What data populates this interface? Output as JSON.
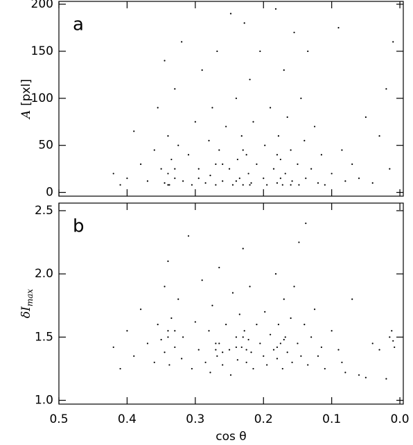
{
  "chart_data": [
    {
      "type": "scatter",
      "annotation": "a",
      "ylabel": "A",
      "ylabel_unit": "[pxl]",
      "color": "#000000",
      "xlim": [
        0.5,
        -0.005
      ],
      "ylim": [
        -4,
        203
      ],
      "yticks": [
        0,
        50,
        100,
        150,
        200
      ],
      "x": [
        0.42,
        0.41,
        0.4,
        0.39,
        0.38,
        0.37,
        0.36,
        0.355,
        0.35,
        0.345,
        0.345,
        0.34,
        0.34,
        0.338,
        0.335,
        0.33,
        0.33,
        0.325,
        0.32,
        0.318,
        0.31,
        0.305,
        0.3,
        0.295,
        0.29,
        0.285,
        0.28,
        0.278,
        0.275,
        0.27,
        0.27,
        0.268,
        0.265,
        0.26,
        0.255,
        0.25,
        0.248,
        0.245,
        0.24,
        0.238,
        0.235,
        0.232,
        0.23,
        0.228,
        0.225,
        0.222,
        0.22,
        0.218,
        0.215,
        0.21,
        0.205,
        0.2,
        0.198,
        0.195,
        0.19,
        0.185,
        0.182,
        0.18,
        0.178,
        0.175,
        0.172,
        0.17,
        0.168,
        0.165,
        0.16,
        0.158,
        0.155,
        0.15,
        0.148,
        0.145,
        0.14,
        0.138,
        0.135,
        0.13,
        0.125,
        0.12,
        0.115,
        0.11,
        0.1,
        0.09,
        0.085,
        0.08,
        0.07,
        0.06,
        0.05,
        0.04,
        0.03,
        0.02,
        0.015,
        0.01,
        0.295,
        0.26,
        0.24,
        0.23,
        0.22,
        0.33,
        0.34,
        0.175,
        0.18,
        0.16
      ],
      "values": [
        20,
        8,
        15,
        65,
        30,
        12,
        45,
        90,
        25,
        10,
        140,
        60,
        20,
        8,
        35,
        110,
        15,
        50,
        160,
        12,
        40,
        8,
        75,
        25,
        130,
        10,
        55,
        18,
        90,
        30,
        8,
        150,
        45,
        12,
        70,
        25,
        190,
        8,
        100,
        35,
        15,
        60,
        8,
        180,
        40,
        20,
        120,
        10,
        75,
        30,
        150,
        15,
        50,
        8,
        90,
        25,
        195,
        10,
        60,
        35,
        8,
        130,
        20,
        80,
        45,
        12,
        170,
        30,
        8,
        100,
        55,
        15,
        150,
        25,
        70,
        10,
        40,
        8,
        20,
        175,
        45,
        12,
        30,
        15,
        80,
        10,
        60,
        110,
        25,
        160,
        15,
        30,
        12,
        45,
        8,
        25,
        8,
        15,
        40,
        8
      ]
    },
    {
      "type": "scatter",
      "annotation": "b",
      "ylabel": "δI",
      "ylabel_sub": "max",
      "xlabel": "cos θ",
      "color": "#000000",
      "xlim": [
        0.5,
        -0.005
      ],
      "ylim": [
        0.97,
        2.56
      ],
      "yticks": [
        {
          "value": 1,
          "label": "1.0"
        },
        1.5,
        {
          "value": 2,
          "label": "2.0"
        },
        2.5
      ],
      "xticks": [
        0.5,
        0.4,
        0.3,
        0.2,
        0.1,
        {
          "value": 0,
          "label": "0.0"
        }
      ],
      "x": [
        0.42,
        0.41,
        0.4,
        0.39,
        0.38,
        0.37,
        0.36,
        0.355,
        0.35,
        0.345,
        0.345,
        0.34,
        0.34,
        0.338,
        0.335,
        0.33,
        0.325,
        0.32,
        0.318,
        0.31,
        0.305,
        0.3,
        0.295,
        0.29,
        0.285,
        0.28,
        0.278,
        0.275,
        0.27,
        0.268,
        0.265,
        0.26,
        0.255,
        0.25,
        0.248,
        0.245,
        0.24,
        0.238,
        0.235,
        0.232,
        0.23,
        0.228,
        0.225,
        0.222,
        0.22,
        0.218,
        0.215,
        0.21,
        0.205,
        0.2,
        0.198,
        0.195,
        0.19,
        0.185,
        0.182,
        0.18,
        0.178,
        0.175,
        0.172,
        0.17,
        0.168,
        0.165,
        0.16,
        0.158,
        0.155,
        0.15,
        0.148,
        0.145,
        0.14,
        0.138,
        0.135,
        0.13,
        0.125,
        0.12,
        0.115,
        0.11,
        0.1,
        0.09,
        0.085,
        0.08,
        0.07,
        0.06,
        0.05,
        0.04,
        0.03,
        0.02,
        0.015,
        0.01,
        0.012,
        0.008,
        0.265,
        0.24,
        0.23,
        0.225,
        0.26,
        0.17,
        0.18,
        0.34,
        0.33,
        0.27
      ],
      "values": [
        1.42,
        1.25,
        1.55,
        1.35,
        1.72,
        1.45,
        1.3,
        1.6,
        1.48,
        1.9,
        1.38,
        2.1,
        1.55,
        1.28,
        1.65,
        1.42,
        1.8,
        1.33,
        1.5,
        2.3,
        1.25,
        1.62,
        1.4,
        1.95,
        1.3,
        1.55,
        1.22,
        1.75,
        1.45,
        1.35,
        2.05,
        1.28,
        1.6,
        1.4,
        1.2,
        1.85,
        1.5,
        1.32,
        1.68,
        1.42,
        2.2,
        1.55,
        1.3,
        1.48,
        1.9,
        1.38,
        1.25,
        1.6,
        1.45,
        1.35,
        1.7,
        1.28,
        1.52,
        1.4,
        2.0,
        1.33,
        1.6,
        1.45,
        1.25,
        1.8,
        1.5,
        1.38,
        1.65,
        1.3,
        1.9,
        1.45,
        2.25,
        1.35,
        1.6,
        2.4,
        1.28,
        1.5,
        1.72,
        1.35,
        1.42,
        1.25,
        1.55,
        1.4,
        1.3,
        1.22,
        1.8,
        1.2,
        1.18,
        1.45,
        1.4,
        1.17,
        1.5,
        1.47,
        1.55,
        1.42,
        1.45,
        1.42,
        1.5,
        1.4,
        1.38,
        1.48,
        1.42,
        1.5,
        1.55,
        1.4
      ]
    }
  ]
}
